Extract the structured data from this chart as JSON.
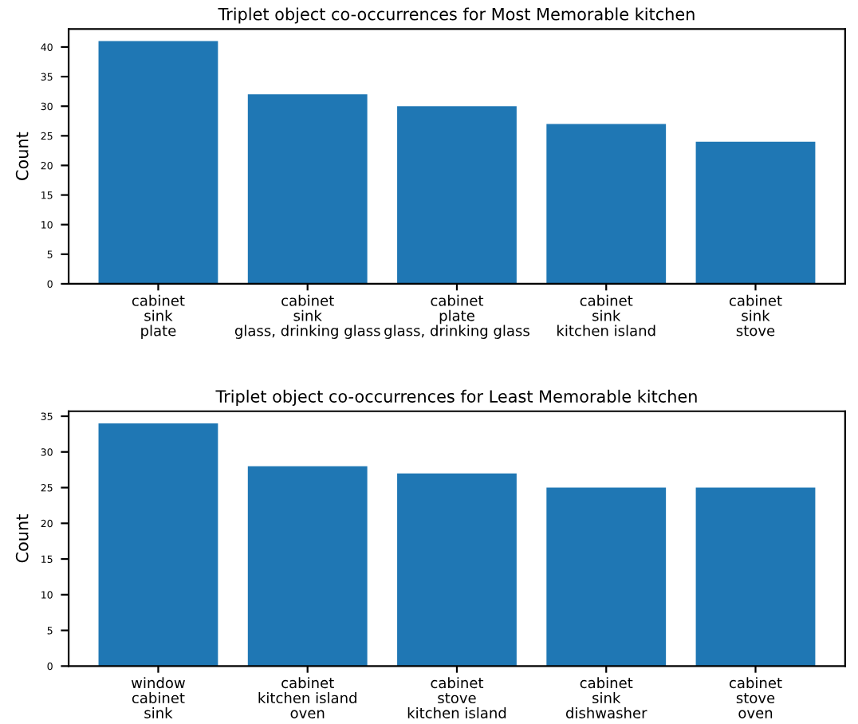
{
  "chart_data": [
    {
      "type": "bar",
      "title": "Triplet object co-occurrences for Most Memorable kitchen",
      "ylabel": "Count",
      "categories": [
        "cabinet\nsink\nplate",
        "cabinet\nsink\nglass, drinking glass",
        "cabinet\nplate\nglass, drinking glass",
        "cabinet\nsink\nkitchen island",
        "cabinet\nsink\nstove"
      ],
      "values": [
        41,
        32,
        30,
        27,
        24
      ],
      "color": "#1f77b4",
      "ylim": [
        0,
        43.05
      ],
      "yticks": [
        0,
        5,
        10,
        15,
        20,
        25,
        30,
        35,
        40
      ]
    },
    {
      "type": "bar",
      "title": "Triplet object co-occurrences for Least Memorable kitchen",
      "ylabel": "Count",
      "categories": [
        "window\ncabinet\nsink",
        "cabinet\nkitchen island\noven",
        "cabinet\nstove\nkitchen island",
        "cabinet\nsink\ndishwasher",
        "cabinet\nstove\noven"
      ],
      "values": [
        34,
        28,
        27,
        25,
        25
      ],
      "color": "#1f77b4",
      "ylim": [
        0,
        35.7
      ],
      "yticks": [
        0,
        5,
        10,
        15,
        20,
        25,
        30,
        35
      ]
    }
  ]
}
